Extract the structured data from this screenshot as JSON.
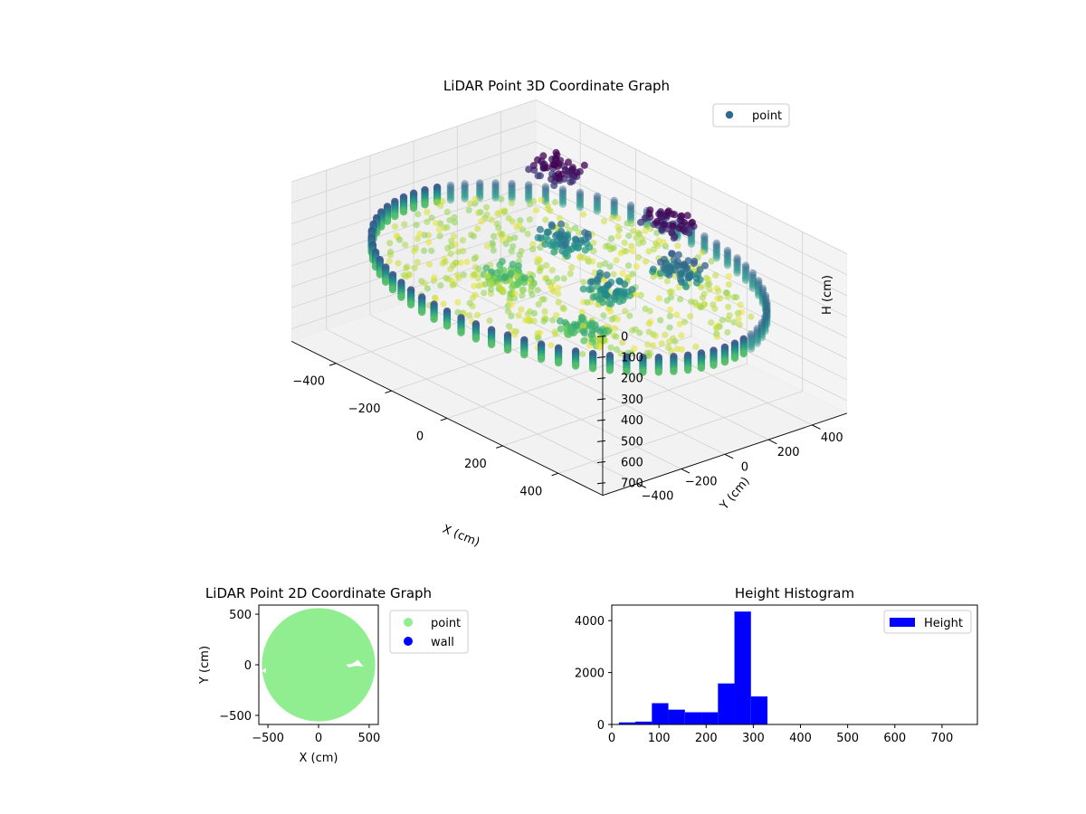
{
  "chart_data": [
    {
      "type": "scatter",
      "projection": "3d",
      "title": "LiDAR Point 3D Coordinate Graph",
      "xlabel": "X (cm)",
      "ylabel": "Y (cm)",
      "zlabel": "H (cm)",
      "xlim": [
        -560,
        560
      ],
      "ylim": [
        -560,
        560
      ],
      "zlim": [
        760,
        0
      ],
      "z_inverted": true,
      "xticks": [
        -400,
        -200,
        0,
        200,
        400
      ],
      "yticks": [
        -400,
        -200,
        0,
        200,
        400
      ],
      "zticks": [
        0,
        100,
        200,
        300,
        400,
        500,
        600,
        700
      ],
      "xtick_labels": [
        "−400",
        "−200",
        "0",
        "200",
        "400"
      ],
      "ytick_labels": [
        "−400",
        "−200",
        "0",
        "200",
        "400"
      ],
      "ztick_labels": [
        "0",
        "100",
        "200",
        "300",
        "400",
        "500",
        "600",
        "700"
      ],
      "colormap": "viridis",
      "colormap_stops": [
        "#440154",
        "#3b528b",
        "#21918c",
        "#5ec962",
        "#fde725"
      ],
      "grid": true,
      "legend_position": "top-right",
      "series": [
        {
          "name": "point",
          "legend_color": "#31688e",
          "structure": "cylindrical wall of points (radius ≈ 560 cm, height ≈ 250–320 cm) plus interior object clusters",
          "wall": {
            "radius": 560,
            "h_top": 250,
            "h_bottom": 320,
            "angular_samples": 72
          },
          "clusters": [
            {
              "x": 60,
              "y": 380,
              "h": 120
            },
            {
              "x": -330,
              "y": 360,
              "h": 110
            },
            {
              "x": 150,
              "y": -20,
              "h": 230
            },
            {
              "x": -120,
              "y": 120,
              "h": 220
            },
            {
              "x": 200,
              "y": 250,
              "h": 200
            },
            {
              "x": -100,
              "y": -150,
              "h": 300
            },
            {
              "x": 250,
              "y": -250,
              "h": 290
            }
          ]
        }
      ]
    },
    {
      "type": "scatter",
      "title": "LiDAR Point 2D Coordinate Graph",
      "xlabel": "X (cm)",
      "ylabel": "Y (cm)",
      "xlim": [
        -590,
        590
      ],
      "ylim": [
        -590,
        590
      ],
      "xticks": [
        -500,
        0,
        500
      ],
      "yticks": [
        -500,
        0,
        500
      ],
      "xtick_labels": [
        "−500",
        "0",
        "500"
      ],
      "ytick_labels": [
        "−500",
        "0",
        "500"
      ],
      "legend_position": "outside-right",
      "series": [
        {
          "name": "point",
          "color": "#90ee90",
          "shape": "filled disk, radius ≈ 560 cm"
        },
        {
          "name": "wall",
          "color": "#0000ff",
          "shape": "no visible points"
        }
      ],
      "gaps": [
        {
          "x": 400,
          "y": 0,
          "note": "white notch near x≈300–450, y≈0"
        }
      ]
    },
    {
      "type": "bar",
      "histogram": true,
      "title": "Height Histogram",
      "xlabel": "",
      "ylabel": "",
      "xlim": [
        0,
        775
      ],
      "ylim": [
        0,
        4600
      ],
      "xticks": [
        0,
        100,
        200,
        300,
        400,
        500,
        600,
        700
      ],
      "yticks": [
        0,
        2000,
        4000
      ],
      "legend_position": "top-right",
      "bin_width": 35,
      "bins": [
        {
          "x0": 15,
          "value": 80
        },
        {
          "x0": 50,
          "value": 110
        },
        {
          "x0": 85,
          "value": 820
        },
        {
          "x0": 120,
          "value": 570
        },
        {
          "x0": 155,
          "value": 470
        },
        {
          "x0": 190,
          "value": 470
        },
        {
          "x0": 225,
          "value": 1580
        },
        {
          "x0": 260,
          "value": 4350
        },
        {
          "x0": 295,
          "value": 1080
        }
      ],
      "series": [
        {
          "name": "Height",
          "color": "#0000ff"
        }
      ]
    }
  ]
}
